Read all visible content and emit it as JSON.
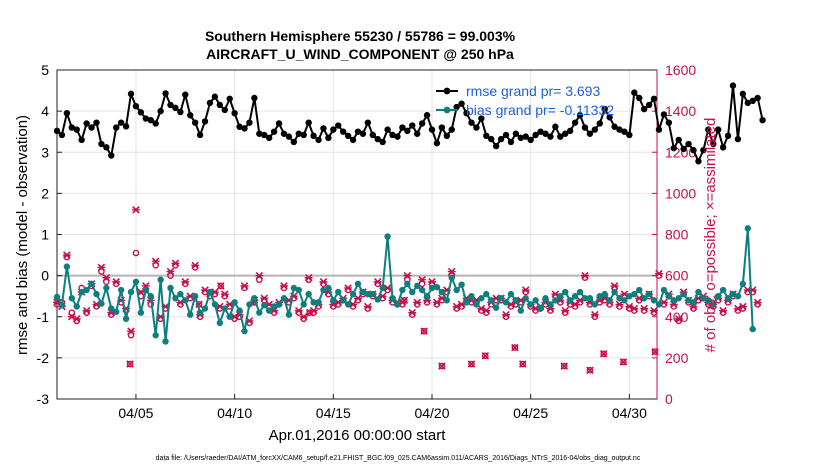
{
  "chart_data": {
    "type": "line",
    "title_line1": "Southern Hemisphere 55230 / 55786 = 99.003%",
    "title_line2": "AIRCRAFT_U_WIND_COMPONENT @ 250 hPa",
    "ylabel": "rmse and bias (model - observation)",
    "ylabel_right": "# of obs: o=possible; ×=assimilated",
    "xlabel": "Apr.01,2016 00:00:00 start",
    "footer": "data file: /Users/raeder/DAI/ATM_forcXX/CAM6_setup/f.e21.FHIST_BGC.f09_025.CAM6assim.011/ACARS_2016/Diags_NTrS_2016-04/obs_diag_output.nc",
    "ylim": [
      -3,
      5
    ],
    "ylim_right": [
      0,
      1600
    ],
    "xlim": [
      1,
      31.4
    ],
    "yticks": [
      "-3",
      "-2",
      "-1",
      "0",
      "1",
      "2",
      "3",
      "4",
      "5"
    ],
    "yticks_right": [
      "0",
      "200",
      "400",
      "600",
      "800",
      "1000",
      "1200",
      "1400",
      "1600"
    ],
    "xticks": [
      {
        "label": "04/05",
        "value": 5
      },
      {
        "label": "04/10",
        "value": 10
      },
      {
        "label": "04/15",
        "value": 15
      },
      {
        "label": "04/20",
        "value": 20
      },
      {
        "label": "04/25",
        "value": 25
      },
      {
        "label": "04/30",
        "value": 30
      }
    ],
    "series": [
      {
        "name": "rmse",
        "legend": "rmse grand pr= 3.693",
        "color": "#000000",
        "values": [
          3.52,
          3.42,
          3.95,
          3.6,
          3.55,
          3.3,
          3.7,
          3.6,
          3.72,
          3.2,
          3.12,
          2.92,
          3.6,
          3.72,
          3.63,
          4.42,
          4.12,
          3.97,
          3.82,
          3.78,
          3.7,
          4.0,
          4.43,
          4.15,
          4.08,
          3.98,
          4.4,
          3.9,
          3.72,
          3.42,
          3.75,
          4.2,
          4.35,
          4.15,
          4.03,
          4.3,
          3.95,
          3.62,
          3.58,
          3.72,
          4.32,
          3.45,
          3.42,
          3.35,
          3.5,
          3.7,
          3.45,
          3.38,
          3.25,
          3.45,
          3.42,
          3.72,
          3.4,
          3.3,
          3.58,
          3.35,
          3.55,
          3.65,
          3.5,
          3.4,
          3.3,
          3.5,
          3.45,
          3.72,
          3.42,
          3.32,
          3.25,
          3.55,
          3.42,
          3.38,
          3.6,
          3.52,
          3.65,
          3.45,
          3.7,
          3.9,
          3.55,
          3.22,
          3.6,
          3.4,
          3.55,
          4.1,
          4.18,
          3.95,
          3.72,
          3.6,
          3.82,
          3.4,
          3.32,
          3.15,
          3.32,
          3.42,
          3.25,
          3.45,
          3.35,
          3.38,
          3.3,
          3.42,
          3.5,
          3.45,
          3.38,
          3.62,
          3.38,
          3.45,
          3.52,
          3.72,
          3.9,
          3.6,
          3.45,
          3.55,
          3.7,
          4.05,
          3.85,
          3.62,
          3.55,
          3.5,
          3.42,
          4.45,
          4.32,
          4.05,
          4.15,
          4.3,
          3.55,
          3.92,
          3.72,
          3.1,
          3.3,
          3.08,
          3.2,
          3.05,
          2.78,
          3.05,
          3.55,
          3.2,
          3.55,
          3.12,
          3.4,
          4.62,
          3.32,
          4.42,
          4.2,
          4.25,
          4.32,
          3.78
        ]
      },
      {
        "name": "bias",
        "legend": "bias grand pr= -0.11332",
        "color": "#0e7f7f",
        "values": [
          -0.52,
          -0.72,
          0.22,
          -0.55,
          -0.75,
          -0.4,
          -0.35,
          -0.2,
          -0.45,
          -0.68,
          -0.3,
          -0.8,
          -0.88,
          -0.35,
          -1.05,
          -0.4,
          -0.15,
          -0.9,
          -0.35,
          -0.5,
          -1.45,
          -0.1,
          -1.6,
          -0.3,
          -0.55,
          -0.45,
          -0.6,
          -0.95,
          -0.5,
          -0.9,
          -0.8,
          -0.4,
          -0.7,
          -1.15,
          -0.8,
          -1.0,
          -0.65,
          -0.85,
          -1.35,
          -0.7,
          -0.55,
          -0.9,
          -0.72,
          -0.85,
          -0.75,
          -0.7,
          -0.55,
          -0.95,
          -0.3,
          -0.35,
          -0.7,
          -0.45,
          -0.65,
          -0.65,
          -0.35,
          -0.3,
          -0.6,
          -0.4,
          -0.6,
          -0.7,
          -0.45,
          -0.2,
          -0.4,
          -0.45,
          -0.45,
          -0.58,
          -0.3,
          0.95,
          -0.55,
          -0.7,
          -0.35,
          -0.2,
          -0.4,
          -0.25,
          -0.35,
          -0.5,
          -0.3,
          -0.28,
          -0.4,
          -0.6,
          -0.05,
          -0.35,
          -0.22,
          -0.65,
          -0.5,
          -0.7,
          -0.55,
          -0.45,
          -0.6,
          -0.78,
          -0.55,
          -0.65,
          -0.45,
          -0.6,
          -0.85,
          -0.55,
          -0.7,
          -0.6,
          -0.8,
          -0.55,
          -0.7,
          -0.6,
          -0.5,
          -0.4,
          -0.6,
          -0.5,
          -0.4,
          -0.55,
          -0.55,
          -0.7,
          -0.5,
          -0.45,
          -0.6,
          -0.4,
          -0.55,
          -0.6,
          -0.5,
          -0.45,
          -0.35,
          -0.55,
          -0.45,
          -0.6,
          -0.7,
          -0.35,
          -0.5,
          -0.6,
          -0.55,
          -0.45,
          -0.6,
          -0.65,
          -0.4,
          -0.55,
          -0.6,
          -0.7,
          -0.5,
          -0.35,
          -0.55,
          -0.45,
          -0.5,
          -0.2,
          1.15,
          -1.3
        ]
      },
      {
        "name": "obs_possible",
        "color": "#c8104e",
        "values": [
          460,
          470,
          690,
          420,
          380,
          540,
          420,
          550,
          450,
          620,
          570,
          410,
          560,
          470,
          430,
          310,
          710,
          500,
          530,
          460,
          650,
          390,
          440,
          600,
          650,
          460,
          560,
          490,
          640,
          400,
          520,
          500,
          510,
          440,
          500,
          450,
          390,
          400,
          540,
          370,
          470,
          580,
          480,
          450,
          420,
          460,
          540,
          470,
          490,
          420,
          390,
          580,
          420,
          450,
          560,
          510,
          450,
          460,
          480,
          530,
          450,
          480,
          510,
          440,
          500,
          560,
          490,
          530,
          470,
          460,
          460,
          580,
          410,
          460,
          560,
          470,
          560,
          460,
          480,
          520,
          600,
          440,
          450,
          480,
          470,
          470,
          430,
          420,
          460,
          480,
          480,
          400,
          450,
          460,
          470,
          520,
          450,
          430,
          440,
          460,
          430,
          500,
          470,
          420,
          460,
          450,
          470,
          590,
          460,
          400,
          470,
          480,
          460,
          540,
          450,
          500,
          440,
          430,
          480,
          430,
          500,
          420,
          600,
          460,
          500,
          450,
          380,
          510,
          470,
          440,
          480,
          490,
          460,
          450,
          480,
          420,
          470,
          500,
          430,
          440,
          520,
          520,
          460
        ]
      },
      {
        "name": "obs_assimilated",
        "color": "#c8104e",
        "values": [
          470,
          450,
          700,
          400,
          390,
          520,
          430,
          560,
          460,
          640,
          590,
          420,
          570,
          480,
          440,
          330,
          920,
          520,
          550,
          480,
          670,
          400,
          450,
          620,
          660,
          470,
          570,
          500,
          650,
          410,
          530,
          510,
          520,
          450,
          510,
          460,
          400,
          410,
          550,
          380,
          480,
          600,
          490,
          460,
          430,
          470,
          550,
          480,
          500,
          430,
          400,
          590,
          430,
          460,
          570,
          520,
          460,
          470,
          490,
          540,
          460,
          490,
          520,
          450,
          510,
          570,
          500,
          540,
          480,
          470,
          470,
          600,
          420,
          470,
          580,
          480,
          570,
          470,
          490,
          530,
          620,
          450,
          460,
          490,
          480,
          480,
          440,
          430,
          470,
          490,
          490,
          410,
          460,
          470,
          480,
          530,
          460,
          440,
          450,
          470,
          440,
          510,
          480,
          430,
          470,
          460,
          480,
          600,
          470,
          410,
          480,
          490,
          470,
          550,
          460,
          510,
          450,
          440,
          490,
          440,
          510,
          430,
          610,
          470,
          510,
          460,
          390,
          520,
          480,
          450,
          490,
          500,
          470,
          460,
          490,
          430,
          480,
          510,
          440,
          450,
          530,
          530,
          470
        ]
      }
    ],
    "extra_obs_points": {
      "color": "#c8104e",
      "x": [
        4.7,
        8.2,
        9.3,
        11.0,
        13.8,
        18.6,
        19.6,
        20.5,
        22.0,
        22.7,
        24.2,
        24.6,
        26.7,
        28.0,
        28.7,
        29.7,
        31.3
      ],
      "y": [
        170,
        460,
        550,
        470,
        420,
        480,
        330,
        160,
        170,
        210,
        250,
        170,
        160,
        140,
        220,
        180,
        230
      ]
    }
  }
}
